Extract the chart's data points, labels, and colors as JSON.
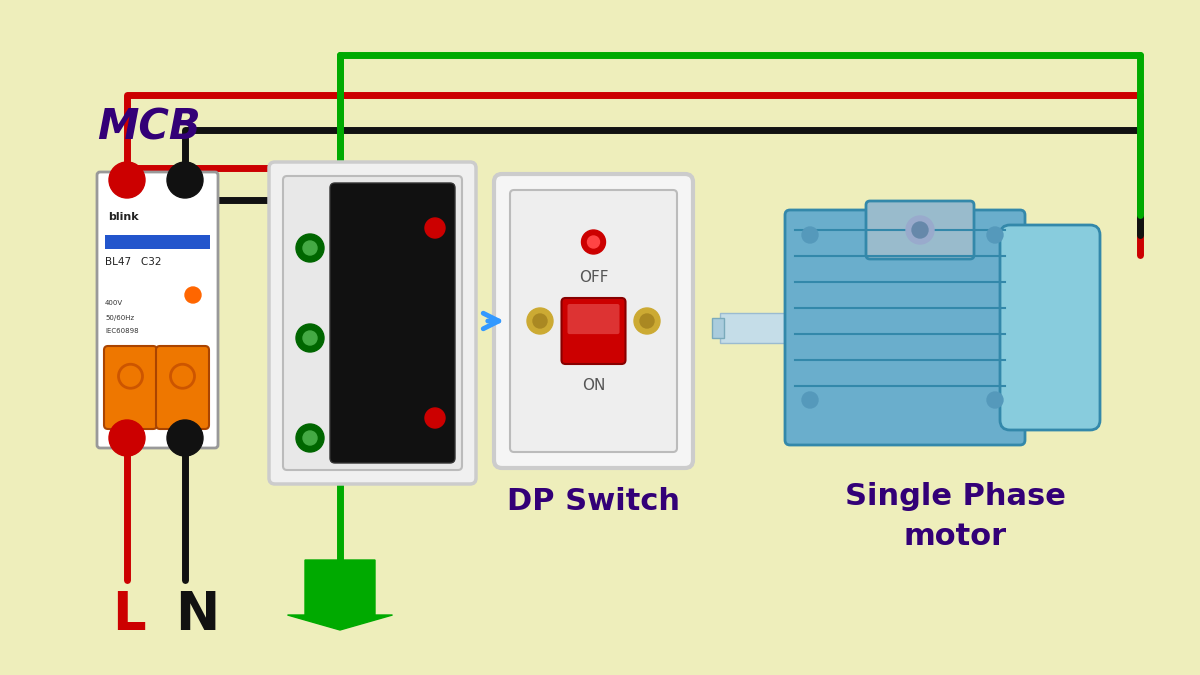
{
  "bg": "#eeeebb",
  "red": "#cc0000",
  "black": "#111111",
  "green": "#00aa00",
  "purple": "#330077",
  "wire_lw": 5,
  "title_visible": false,
  "mcb_label": "MCB",
  "dp_label": "DP Switch",
  "motor_label1": "Single Phase",
  "motor_label2": "motor",
  "L_label": "L",
  "N_label": "N",
  "off_text": "OFF",
  "on_text": "ON"
}
